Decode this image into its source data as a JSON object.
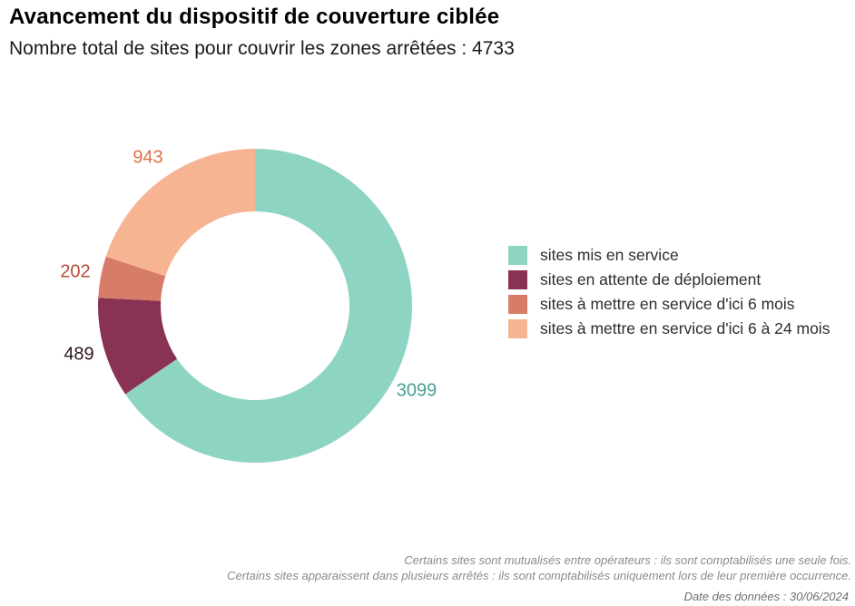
{
  "header": {
    "title": "Avancement du dispositif de couverture ciblée",
    "subtitle": "Nombre total de sites pour couvrir les zones arrêtées : 4733"
  },
  "chart_data": {
    "type": "pie",
    "variant": "donut",
    "title": "Avancement du dispositif de couverture ciblée",
    "subtitle": "Nombre total de sites pour couvrir les zones arrêtées : 4733",
    "total": 4733,
    "start_angle_deg": 0,
    "direction": "clockwise",
    "legend_position": "right",
    "segments": [
      {
        "label": "sites mis en service",
        "value": 3099,
        "color": "#8ed4c3",
        "label_color": "#4b9f94"
      },
      {
        "label": "sites en attente de déploiement",
        "value": 489,
        "color": "#8a3253",
        "label_color": "#2d1522"
      },
      {
        "label": "sites à mettre en service d'ici 6 mois",
        "value": 202,
        "color": "#d87c6a",
        "label_color": "#b74b39"
      },
      {
        "label": "sites à mettre en service d'ici 6 à 24 mois",
        "value": 943,
        "color": "#f6b493",
        "label_color": "#dd7048"
      }
    ]
  },
  "footer": {
    "note1": "Certains sites sont mutualisés entre opérateurs : ils sont comptabilisés une seule fois.",
    "note2": "Certains sites apparaissent dans plusieurs arrêtés : ils sont comptabilisés uniquement lors de leur première occurrence.",
    "date_line": "Date des données : 30/06/2024"
  }
}
